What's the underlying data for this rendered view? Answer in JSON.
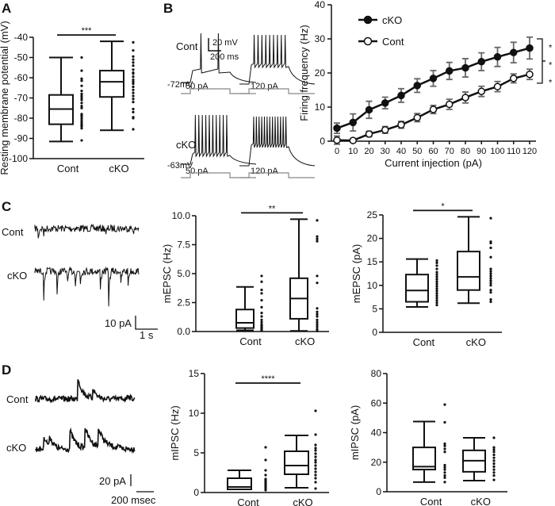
{
  "panel_labels": [
    "A",
    "B",
    "C",
    "D"
  ],
  "traces": {
    "B": {
      "cont_label": "Cont",
      "cko_label": "cKO",
      "cont_rest": "-72mV",
      "cko_rest": "-63mV",
      "step_low": "50 pA",
      "step_high": "120 pA",
      "scale_v": "20 mV",
      "scale_t": "200 ms",
      "spike_counts": {
        "cont_50": 2,
        "cont_120": 9,
        "cko_50": 10,
        "cko_120": 13
      }
    },
    "C": {
      "cont_label": "Cont",
      "cko_label": "cKO",
      "scale_i": "10 pA",
      "scale_t": "1 s"
    },
    "D": {
      "cont_label": "Cont",
      "cko_label": "cKO",
      "scale_i": "20 pA",
      "scale_t": "200 msec"
    }
  },
  "chart_data": [
    {
      "id": "A",
      "type": "box",
      "ylabel": "Resting membrane potential (mV)",
      "ylim": [
        -100,
        -40
      ],
      "yticks": [
        "-40",
        "-50",
        "-60",
        "-70",
        "-80",
        "-90",
        "-100"
      ],
      "categories": [
        "Cont",
        "cKO"
      ],
      "significance": "***",
      "boxes": [
        {
          "min": -91.5,
          "q1": -83,
          "median": -75.5,
          "q3": -68.5,
          "max": -50
        },
        {
          "min": -86,
          "q1": -69.5,
          "median": -62,
          "q3": -56.5,
          "max": -42
        }
      ],
      "points": [
        [
          -50,
          -56.5,
          -60.5,
          -61.5,
          -64,
          -66.5,
          -68,
          -69,
          -70,
          -71,
          -72.5,
          -74,
          -75,
          -78,
          -78.5,
          -79,
          -80,
          -81,
          -82,
          -83,
          -83.5,
          -84,
          -85,
          -91
        ],
        [
          -42.5,
          -46.5,
          -49.5,
          -51,
          -52.5,
          -54,
          -56,
          -57.5,
          -58,
          -59.5,
          -61,
          -62,
          -63,
          -64.5,
          -66,
          -67.5,
          -69,
          -70.5,
          -72,
          -75.5,
          -77,
          -79.5,
          -80,
          -85.5
        ]
      ]
    },
    {
      "id": "B",
      "type": "line",
      "xlabel": "Current injection (pA)",
      "ylabel": "Firing frequency (Hz)",
      "xlim": [
        0,
        120
      ],
      "ylim": [
        0,
        40
      ],
      "xticks": [
        0,
        10,
        20,
        30,
        40,
        50,
        60,
        70,
        80,
        90,
        100,
        110,
        120
      ],
      "yticks": [
        0,
        10,
        20,
        30,
        40
      ],
      "legend": "top-left",
      "significance": "* * *",
      "x": [
        0,
        10,
        20,
        30,
        40,
        50,
        60,
        70,
        80,
        90,
        100,
        110,
        120
      ],
      "series": [
        {
          "name": "cKO",
          "marker": "filled-circle",
          "values": [
            3.8,
            5.5,
            9.2,
            11.2,
            13.4,
            16.3,
            18.4,
            20.6,
            21.5,
            23.3,
            24.7,
            26,
            27.3
          ],
          "error": [
            1.5,
            2.5,
            2.5,
            1.7,
            2,
            2,
            2.3,
            2.5,
            2.7,
            2.6,
            2.8,
            3,
            3.2
          ]
        },
        {
          "name": "Cont",
          "marker": "open-circle",
          "values": [
            0.3,
            0.2,
            2.1,
            3.3,
            4.8,
            6.9,
            9.3,
            10.8,
            12.8,
            14.6,
            16,
            18.4,
            19.6
          ],
          "error": [
            1.2,
            0.5,
            0.8,
            1,
            1,
            1.2,
            1.2,
            1.5,
            1.6,
            1.5,
            1.5,
            1.3,
            1.5
          ]
        }
      ]
    },
    {
      "id": "C1",
      "type": "box",
      "ylabel": "mEPSC (Hz)",
      "ylim": [
        0,
        10
      ],
      "yticks": [
        "0.0",
        "2.5",
        "5.0",
        "7.5",
        "10.0"
      ],
      "categories": [
        "Cont",
        "cKO"
      ],
      "significance": "**",
      "boxes": [
        {
          "min": 0.1,
          "q1": 0.3,
          "median": 0.75,
          "q3": 1.9,
          "max": 3.85
        },
        {
          "min": 0.05,
          "q1": 1.1,
          "median": 2.85,
          "q3": 4.6,
          "max": 9.7
        }
      ],
      "points": [
        [
          0.1,
          0.2,
          0.3,
          0.4,
          0.5,
          0.6,
          0.8,
          1.0,
          1.3,
          1.6,
          2.1,
          2.7,
          3.3,
          3.6,
          4.3,
          4.8
        ],
        [
          0.05,
          0.2,
          0.4,
          0.6,
          0.8,
          1.0,
          1.3,
          1.5,
          1.7,
          2.0,
          4.2,
          4.8,
          7.8,
          8.0,
          8.2,
          9.6
        ]
      ]
    },
    {
      "id": "C2",
      "type": "box",
      "ylabel": "mEPSC (pA)",
      "ylim": [
        0,
        25
      ],
      "yticks": [
        "0",
        "5",
        "10",
        "15",
        "20",
        "25"
      ],
      "categories": [
        "Cont",
        "cKO"
      ],
      "significance": "*",
      "boxes": [
        {
          "min": 5.4,
          "q1": 6.5,
          "median": 8.9,
          "q3": 12.3,
          "max": 15.6
        },
        {
          "min": 6.2,
          "q1": 9.0,
          "median": 11.8,
          "q3": 17.2,
          "max": 24.6
        }
      ],
      "points": [
        [
          5.8,
          6.3,
          6.8,
          7.3,
          7.8,
          8.3,
          8.8,
          9.3,
          9.8,
          10.3,
          10.8,
          11.3,
          11.8,
          12.3,
          12.8,
          13.5,
          14.2,
          14.8,
          15.3
        ],
        [
          6.5,
          7,
          8.5,
          9,
          10,
          10.5,
          11,
          11.5,
          12,
          12.5,
          13,
          13.5,
          16,
          18,
          19,
          19.3,
          24.3
        ]
      ]
    },
    {
      "id": "D1",
      "type": "box",
      "ylabel": "mIPSC (Hz)",
      "ylim": [
        0,
        15
      ],
      "yticks": [
        "0",
        "5",
        "10",
        "15"
      ],
      "categories": [
        "Cont",
        "cKO"
      ],
      "significance": "****",
      "boxes": [
        {
          "min": 0.4,
          "q1": 0.4,
          "median": 0.7,
          "q3": 1.8,
          "max": 2.8
        },
        {
          "min": 0.6,
          "q1": 2.3,
          "median": 3.4,
          "q3": 5.2,
          "max": 7.2
        }
      ],
      "points": [
        [
          0.3,
          0.5,
          0.7,
          0.9,
          1.1,
          1.3,
          1.5,
          1.7,
          2.2,
          2.8,
          4.1,
          5.7
        ],
        [
          0.5,
          1.3,
          1.8,
          2.2,
          2.6,
          3.0,
          3.4,
          3.8,
          4.1,
          4.5,
          4.9,
          5.3,
          5.6,
          6.0,
          7.3,
          10.3
        ]
      ]
    },
    {
      "id": "D2",
      "type": "box",
      "ylabel": "mIPSC (pA)",
      "ylim": [
        0,
        80
      ],
      "yticks": [
        "0",
        "20",
        "40",
        "60",
        "80"
      ],
      "categories": [
        "Cont",
        "cKO"
      ],
      "significance": "",
      "boxes": [
        {
          "min": 6.5,
          "q1": 15,
          "median": 17,
          "q3": 30,
          "max": 47.5
        },
        {
          "min": 7.5,
          "q1": 13.5,
          "median": 21,
          "q3": 28,
          "max": 36.5
        }
      ],
      "points": [
        [
          6.5,
          9.5,
          11,
          13,
          15,
          16.5,
          18,
          27,
          29,
          31,
          32.5,
          47,
          59
        ],
        [
          8,
          11,
          13,
          15,
          17,
          19,
          21,
          23,
          25,
          27,
          28.5,
          30,
          36.5
        ]
      ]
    }
  ]
}
